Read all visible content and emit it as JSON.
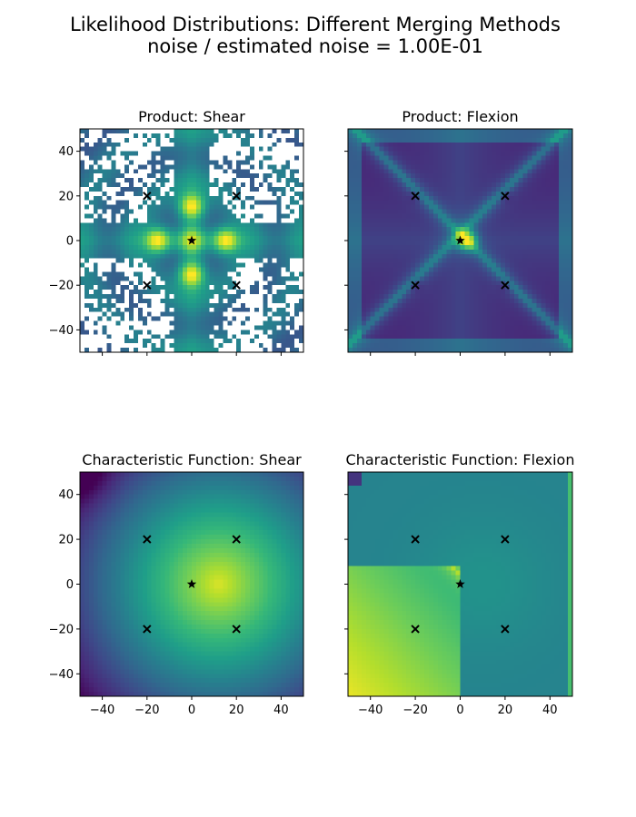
{
  "figure": {
    "title_line1": "Likelihood Distributions: Different Merging Methods",
    "title_line2": "noise / estimated noise = 1.00E-01"
  },
  "chart_data": [
    {
      "type": "heatmap",
      "title": "Product: Shear",
      "xlim": [
        -50,
        50
      ],
      "ylim": [
        -50,
        50
      ],
      "xticks": [
        -40,
        -20,
        0,
        20,
        40
      ],
      "yticks": [
        -40,
        -20,
        0,
        20,
        40
      ],
      "show_xticklabels": false,
      "show_yticklabels": true,
      "colormap": "viridis",
      "has_masked_regions": true,
      "lens_markers": [
        {
          "x": -20,
          "y": 20
        },
        {
          "x": 20,
          "y": 20
        },
        {
          "x": -20,
          "y": -20
        },
        {
          "x": 20,
          "y": -20
        }
      ],
      "source_marker": {
        "x": 0,
        "y": 0
      }
    },
    {
      "type": "heatmap",
      "title": "Product: Flexion",
      "xlim": [
        -50,
        50
      ],
      "ylim": [
        -50,
        50
      ],
      "xticks": [
        -40,
        -20,
        0,
        20,
        40
      ],
      "yticks": [
        -40,
        -20,
        0,
        20,
        40
      ],
      "show_xticklabels": false,
      "show_yticklabels": false,
      "colormap": "viridis",
      "lens_markers": [
        {
          "x": -20,
          "y": 20
        },
        {
          "x": 20,
          "y": 20
        },
        {
          "x": -20,
          "y": -20
        },
        {
          "x": 20,
          "y": -20
        }
      ],
      "source_marker": {
        "x": 0,
        "y": 0
      }
    },
    {
      "type": "heatmap",
      "title": "Characteristic Function: Shear",
      "xlim": [
        -50,
        50
      ],
      "ylim": [
        -50,
        50
      ],
      "xticks": [
        -40,
        -20,
        0,
        20,
        40
      ],
      "yticks": [
        -40,
        -20,
        0,
        20,
        40
      ],
      "show_xticklabels": true,
      "show_yticklabels": true,
      "colormap": "viridis",
      "lens_markers": [
        {
          "x": -20,
          "y": 20
        },
        {
          "x": 20,
          "y": 20
        },
        {
          "x": -20,
          "y": -20
        },
        {
          "x": 20,
          "y": -20
        }
      ],
      "source_marker": {
        "x": 0,
        "y": 0
      }
    },
    {
      "type": "heatmap",
      "title": "Characteristic Function: Flexion",
      "xlim": [
        -50,
        50
      ],
      "ylim": [
        -50,
        50
      ],
      "xticks": [
        -40,
        -20,
        0,
        20,
        40
      ],
      "yticks": [
        -40,
        -20,
        0,
        20,
        40
      ],
      "show_xticklabels": true,
      "show_yticklabels": false,
      "colormap": "viridis",
      "lens_markers": [
        {
          "x": -20,
          "y": 20
        },
        {
          "x": 20,
          "y": 20
        },
        {
          "x": -20,
          "y": -20
        },
        {
          "x": 20,
          "y": -20
        }
      ],
      "source_marker": {
        "x": 0,
        "y": 0
      }
    }
  ],
  "colors": {
    "viridis_dark": "#440154",
    "viridis_blue": "#3b528b",
    "viridis_teal": "#21908d",
    "viridis_green": "#5dc963",
    "viridis_yellow": "#fde725",
    "masked": "#ffffff"
  }
}
